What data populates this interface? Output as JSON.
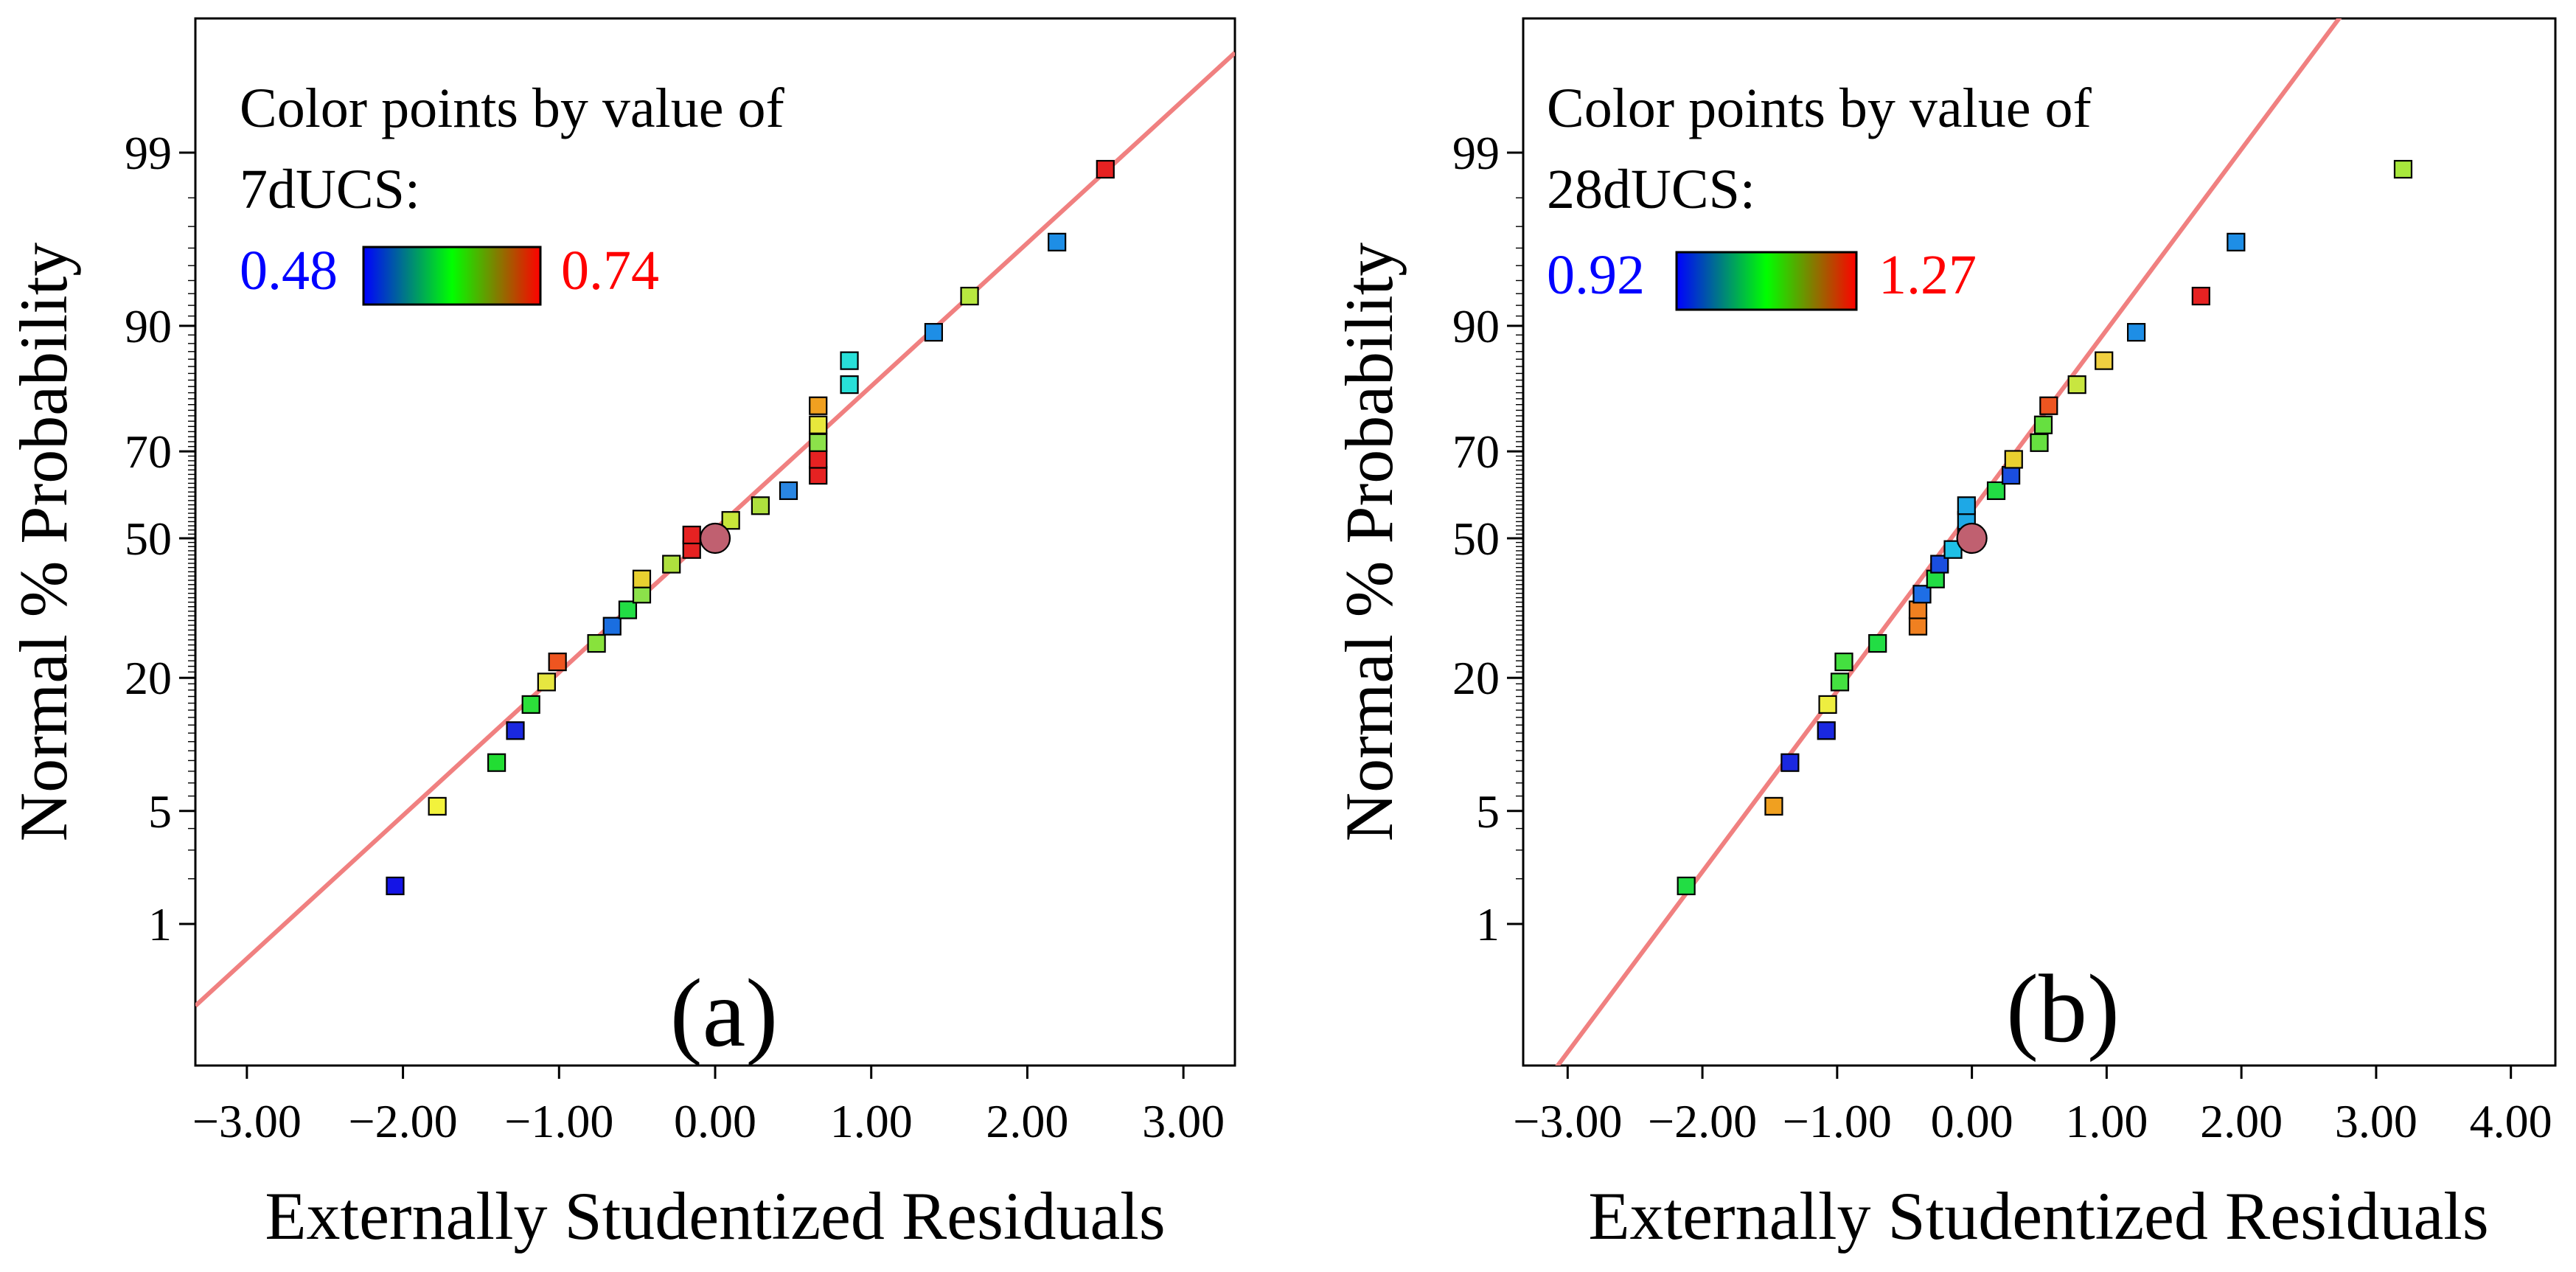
{
  "colors": {
    "fit_line": "#f08080",
    "low_label": "#0000ff",
    "high_label": "#ff0000",
    "gradient": [
      "#0000ff",
      "#00ff00",
      "#ff0000"
    ]
  },
  "chart_data": [
    {
      "panel": "(a)",
      "type": "scatter",
      "subtype": "normal-probability",
      "xlabel": "Externally Studentized Residuals",
      "ylabel": "Normal % Probability",
      "xlim": [
        -3.33,
        3.33
      ],
      "x_ticks": [
        -3,
        -2,
        -1,
        0,
        1,
        2,
        3
      ],
      "x_tick_labels": [
        "−3.00",
        "−2.00",
        "−1.00",
        "0.00",
        "1.00",
        "2.00",
        "3.00"
      ],
      "y_ticks": [
        1,
        5,
        20,
        50,
        70,
        90,
        99
      ],
      "y_tick_labels": [
        "1",
        "5",
        "20",
        "50",
        "70",
        "90",
        "99"
      ],
      "legend": {
        "title": [
          "Color points by value of",
          "7dUCS:"
        ],
        "min_label": "0.48",
        "max_label": "0.74"
      },
      "fit_line": {
        "x": [
          -3.33,
          3.33
        ],
        "p": [
          0.24,
          99.83
        ]
      },
      "highlight_point": {
        "x": 0.0,
        "p": 50
      },
      "points": [
        {
          "x": -2.05,
          "p": 1.8,
          "c": "#1414e6"
        },
        {
          "x": -1.78,
          "p": 5.3,
          "c": "#f2f23c"
        },
        {
          "x": -1.4,
          "p": 8.8,
          "c": "#22dd33"
        },
        {
          "x": -1.28,
          "p": 12.3,
          "c": "#1a28e0"
        },
        {
          "x": -1.18,
          "p": 15.8,
          "c": "#2ce03a"
        },
        {
          "x": -1.08,
          "p": 19.3,
          "c": "#e6e640"
        },
        {
          "x": -1.01,
          "p": 22.8,
          "c": "#ee5520"
        },
        {
          "x": -0.76,
          "p": 26.3,
          "c": "#88e23c"
        },
        {
          "x": -0.66,
          "p": 29.8,
          "c": "#1a6ee0"
        },
        {
          "x": -0.56,
          "p": 33.3,
          "c": "#22dd44"
        },
        {
          "x": -0.47,
          "p": 36.8,
          "c": "#8ce24a"
        },
        {
          "x": -0.47,
          "p": 40.3,
          "c": "#e8d030"
        },
        {
          "x": -0.28,
          "p": 43.8,
          "c": "#aee03e"
        },
        {
          "x": -0.15,
          "p": 47.3,
          "c": "#e62222"
        },
        {
          "x": -0.15,
          "p": 50.8,
          "c": "#e62222"
        },
        {
          "x": 0.1,
          "p": 54.3,
          "c": "#c8e63a"
        },
        {
          "x": 0.29,
          "p": 57.8,
          "c": "#aee03e"
        },
        {
          "x": 0.47,
          "p": 61.3,
          "c": "#2a86e2"
        },
        {
          "x": 0.66,
          "p": 64.8,
          "c": "#e62222"
        },
        {
          "x": 0.66,
          "p": 68.3,
          "c": "#e62222"
        },
        {
          "x": 0.66,
          "p": 71.8,
          "c": "#8ce24a"
        },
        {
          "x": 0.66,
          "p": 75.3,
          "c": "#e8e83c"
        },
        {
          "x": 0.66,
          "p": 78.8,
          "c": "#f0a020"
        },
        {
          "x": 0.86,
          "p": 82.3,
          "c": "#28e0d8"
        },
        {
          "x": 0.86,
          "p": 85.8,
          "c": "#28e0d8"
        },
        {
          "x": 1.4,
          "p": 89.3,
          "c": "#1e8ee6"
        },
        {
          "x": 1.63,
          "p": 92.8,
          "c": "#b8e840"
        },
        {
          "x": 2.19,
          "p": 96.3,
          "c": "#1e8ee6"
        },
        {
          "x": 2.5,
          "p": 98.7,
          "c": "#e62222"
        }
      ]
    },
    {
      "panel": "(b)",
      "type": "scatter",
      "subtype": "normal-probability",
      "xlabel": "Externally Studentized Residuals",
      "ylabel": "Normal % Probability",
      "xlim": [
        -3.33,
        4.33
      ],
      "x_ticks": [
        -3,
        -2,
        -1,
        0,
        1,
        2,
        3,
        4
      ],
      "x_tick_labels": [
        "−3.00",
        "−2.00",
        "−1.00",
        "0.00",
        "1.00",
        "2.00",
        "3.00",
        "4.00"
      ],
      "y_ticks": [
        1,
        5,
        20,
        50,
        70,
        90,
        99
      ],
      "y_tick_labels": [
        "1",
        "5",
        "20",
        "50",
        "70",
        "90",
        "99"
      ],
      "legend": {
        "title": [
          "Color points by value of",
          "28dUCS:"
        ],
        "min_label": "0.92",
        "max_label": "1.27"
      },
      "fit_line": {
        "x": [
          -3.33,
          3.26
        ],
        "p": [
          0.027,
          99.99
        ]
      },
      "highlight_point": {
        "x": 0.0,
        "p": 50
      },
      "points": [
        {
          "x": -2.12,
          "p": 1.8,
          "c": "#22dd44"
        },
        {
          "x": -1.47,
          "p": 5.3,
          "c": "#f0a020"
        },
        {
          "x": -1.35,
          "p": 8.8,
          "c": "#1a28e0"
        },
        {
          "x": -1.08,
          "p": 12.3,
          "c": "#1a28e0"
        },
        {
          "x": -1.07,
          "p": 15.8,
          "c": "#eeee40"
        },
        {
          "x": -0.98,
          "p": 19.3,
          "c": "#44e040"
        },
        {
          "x": -0.95,
          "p": 22.8,
          "c": "#44e040"
        },
        {
          "x": -0.7,
          "p": 26.3,
          "c": "#22dd44"
        },
        {
          "x": -0.4,
          "p": 29.8,
          "c": "#f08020"
        },
        {
          "x": -0.4,
          "p": 33.3,
          "c": "#f08020"
        },
        {
          "x": -0.37,
          "p": 36.8,
          "c": "#1e6ee6"
        },
        {
          "x": -0.27,
          "p": 40.3,
          "c": "#22dd44"
        },
        {
          "x": -0.24,
          "p": 43.8,
          "c": "#1a4ee0"
        },
        {
          "x": -0.14,
          "p": 47.3,
          "c": "#1ec0e6"
        },
        {
          "x": -0.04,
          "p": 50.8,
          "c": "#22dd44"
        },
        {
          "x": -0.04,
          "p": 54.3,
          "c": "#1ea8e6"
        },
        {
          "x": -0.04,
          "p": 57.8,
          "c": "#1ea8e6"
        },
        {
          "x": 0.18,
          "p": 61.3,
          "c": "#22dd44"
        },
        {
          "x": 0.29,
          "p": 64.8,
          "c": "#1a4ee0"
        },
        {
          "x": 0.31,
          "p": 68.3,
          "c": "#e8d030"
        },
        {
          "x": 0.5,
          "p": 71.8,
          "c": "#66e040"
        },
        {
          "x": 0.53,
          "p": 75.3,
          "c": "#66e040"
        },
        {
          "x": 0.57,
          "p": 78.8,
          "c": "#ee5520"
        },
        {
          "x": 0.78,
          "p": 82.3,
          "c": "#c8e640"
        },
        {
          "x": 0.98,
          "p": 85.8,
          "c": "#f0d040"
        },
        {
          "x": 1.22,
          "p": 89.3,
          "c": "#1e8ee6"
        },
        {
          "x": 1.7,
          "p": 92.8,
          "c": "#e62222"
        },
        {
          "x": 1.96,
          "p": 96.3,
          "c": "#1e8ee6"
        },
        {
          "x": 3.2,
          "p": 98.7,
          "c": "#a8e83c"
        }
      ]
    }
  ]
}
